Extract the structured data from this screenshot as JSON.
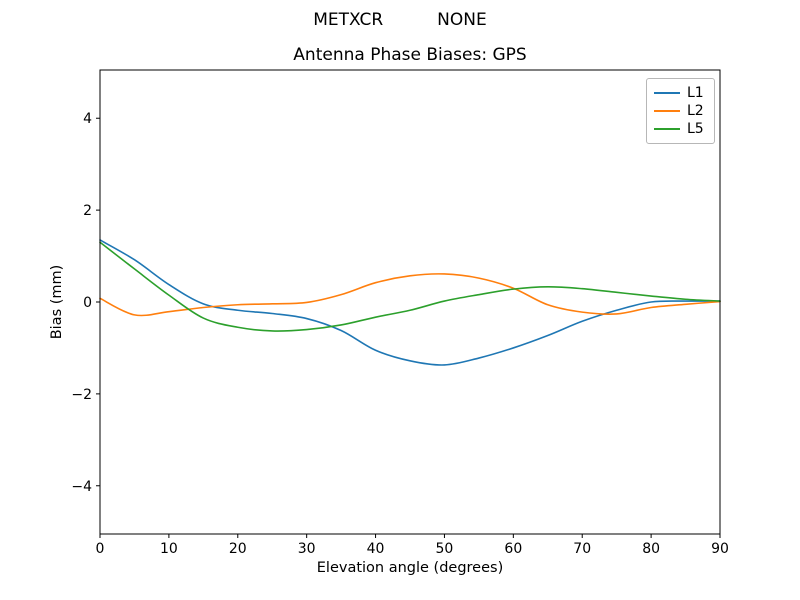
{
  "header": {
    "station": "METXCR",
    "solution": "NONE"
  },
  "chart_data": {
    "type": "line",
    "title": "Antenna Phase Biases: GPS",
    "xlabel": "Elevation angle (degrees)",
    "ylabel": "Bias (mm)",
    "x": [
      0,
      5,
      10,
      15,
      20,
      25,
      30,
      35,
      40,
      45,
      50,
      55,
      60,
      65,
      70,
      75,
      80,
      85,
      90
    ],
    "series": [
      {
        "name": "L1",
        "color": "#1f77b4",
        "values": [
          1.35,
          0.92,
          0.38,
          -0.04,
          -0.18,
          -0.25,
          -0.36,
          -0.62,
          -1.05,
          -1.28,
          -1.37,
          -1.22,
          -1.0,
          -0.73,
          -0.42,
          -0.18,
          0.0,
          0.02,
          0.02
        ]
      },
      {
        "name": "L2",
        "color": "#ff7f0e",
        "values": [
          0.08,
          -0.28,
          -0.21,
          -0.12,
          -0.06,
          -0.04,
          -0.01,
          0.16,
          0.42,
          0.57,
          0.61,
          0.52,
          0.3,
          -0.06,
          -0.22,
          -0.26,
          -0.12,
          -0.05,
          0.01
        ]
      },
      {
        "name": "L5",
        "color": "#2ca02c",
        "values": [
          1.3,
          0.72,
          0.15,
          -0.35,
          -0.55,
          -0.63,
          -0.6,
          -0.5,
          -0.33,
          -0.18,
          0.02,
          0.16,
          0.28,
          0.33,
          0.29,
          0.21,
          0.13,
          0.06,
          0.02
        ]
      }
    ],
    "xlim": [
      0,
      90
    ],
    "ylim": [
      -5.05,
      5.05
    ],
    "xticks": [
      0,
      10,
      20,
      30,
      40,
      50,
      60,
      70,
      80,
      90
    ],
    "yticks": [
      -4,
      -2,
      0,
      2,
      4
    ],
    "grid": false,
    "legend_position": "upper right",
    "axes_color": "#000000",
    "background": "#ffffff"
  }
}
